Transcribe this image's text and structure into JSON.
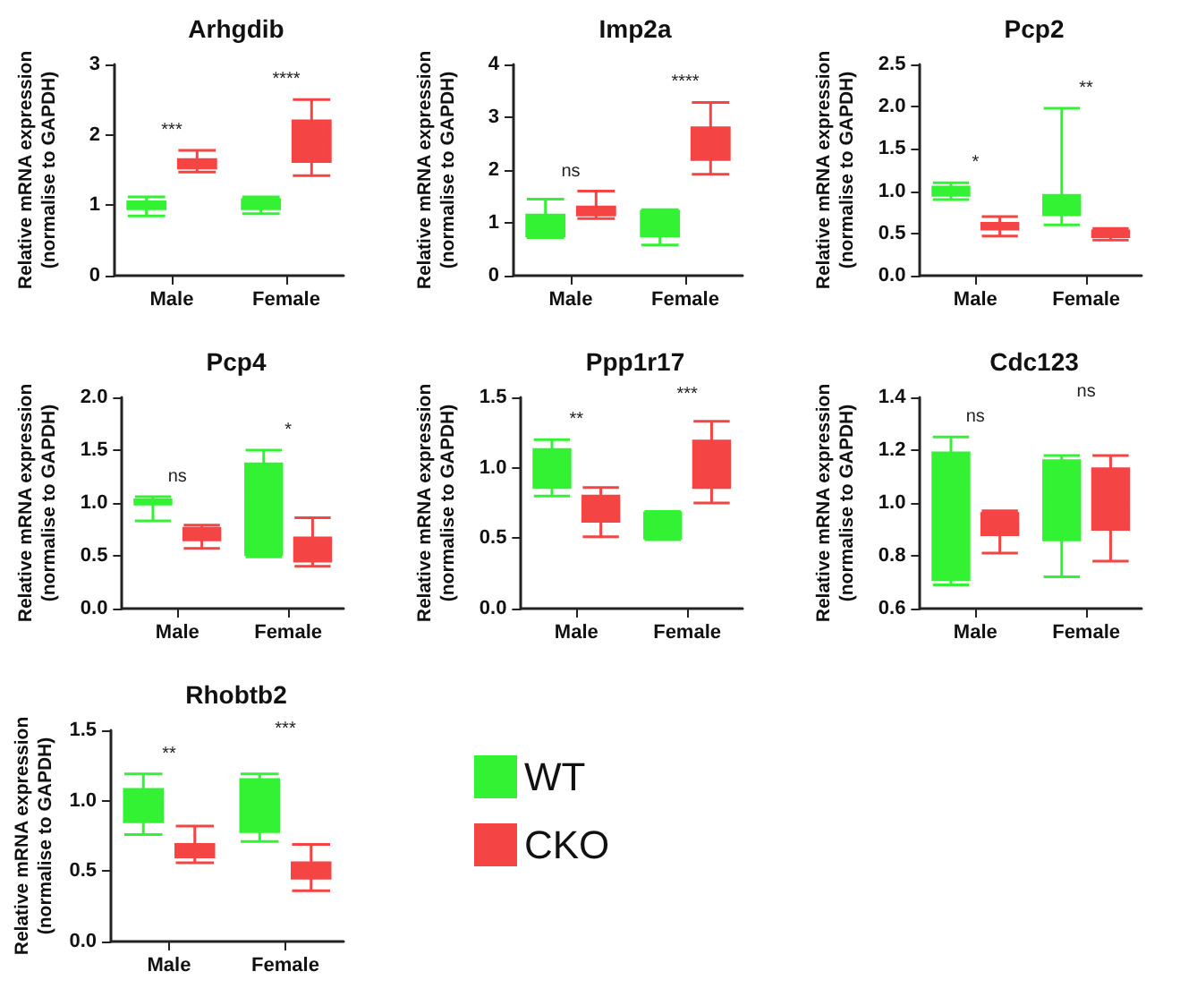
{
  "chart_data": [
    {
      "type": "box",
      "title": "Arhgdib",
      "ylabel": "Relative mRNA expression\n(normalise to GAPDH)",
      "categories": [
        "Male",
        "Female"
      ],
      "ylim": [
        0,
        3
      ],
      "yticks": [
        0,
        1,
        2,
        3
      ],
      "grid": false,
      "legend": false,
      "annotations": [
        "***",
        "****"
      ],
      "series": [
        {
          "color": "#33f233",
          "boxes": [
            {
              "low": 0.85,
              "q1": 0.95,
              "median": 1.0,
              "q3": 1.05,
              "high": 1.12
            },
            {
              "low": 0.88,
              "q1": 0.95,
              "median": 1.02,
              "q3": 1.08,
              "high": 1.12
            }
          ]
        },
        {
          "color": "#f44444",
          "boxes": [
            {
              "low": 1.47,
              "q1": 1.53,
              "median": 1.58,
              "q3": 1.65,
              "high": 1.78
            },
            {
              "low": 1.42,
              "q1": 1.62,
              "median": 1.91,
              "q3": 2.2,
              "high": 2.5
            }
          ]
        }
      ]
    },
    {
      "type": "box",
      "title": "Imp2a",
      "ylabel": "Relative mRNA expression\n(normalise to GAPDH)",
      "categories": [
        "Male",
        "Female"
      ],
      "ylim": [
        0,
        4
      ],
      "yticks": [
        0,
        1,
        2,
        3,
        4
      ],
      "grid": false,
      "legend": false,
      "annotations": [
        "ns",
        "****"
      ],
      "series": [
        {
          "color": "#33f233",
          "boxes": [
            {
              "low": 0.72,
              "q1": 0.75,
              "median": 0.95,
              "q3": 1.15,
              "high": 1.45
            },
            {
              "low": 0.58,
              "q1": 0.75,
              "median": 1.08,
              "q3": 1.22,
              "high": 1.25
            }
          ]
        },
        {
          "color": "#f44444",
          "boxes": [
            {
              "low": 1.08,
              "q1": 1.15,
              "median": 1.22,
              "q3": 1.3,
              "high": 1.6
            },
            {
              "low": 1.92,
              "q1": 2.2,
              "median": 2.6,
              "q3": 2.8,
              "high": 3.28
            }
          ]
        }
      ]
    },
    {
      "type": "box",
      "title": "Pcp2",
      "ylabel": "Relative mRNA expression\n(normalise to GAPDH)",
      "categories": [
        "Male",
        "Female"
      ],
      "ylim": [
        0,
        2.5
      ],
      "yticks": [
        {
          "value": 0,
          "label": "0.0"
        },
        {
          "value": 0.5,
          "label": "0.5"
        },
        {
          "value": 1,
          "label": "1.0"
        },
        {
          "value": 1.5,
          "label": "1.5"
        },
        {
          "value": 2,
          "label": "2.0"
        },
        {
          "value": 2.5,
          "label": "2.5"
        }
      ],
      "grid": false,
      "legend": false,
      "annotations": [
        "*",
        "**"
      ],
      "series": [
        {
          "color": "#33f233",
          "boxes": [
            {
              "low": 0.9,
              "q1": 0.95,
              "median": 1.0,
              "q3": 1.05,
              "high": 1.1
            },
            {
              "low": 0.6,
              "q1": 0.72,
              "median": 0.84,
              "q3": 0.95,
              "high": 1.98
            }
          ]
        },
        {
          "color": "#f44444",
          "boxes": [
            {
              "low": 0.47,
              "q1": 0.55,
              "median": 0.58,
              "q3": 0.62,
              "high": 0.7
            },
            {
              "low": 0.42,
              "q1": 0.46,
              "median": 0.5,
              "q3": 0.53,
              "high": 0.56
            }
          ]
        }
      ]
    },
    {
      "type": "box",
      "title": "Pcp4",
      "ylabel": "Relative mRNA expression\n(normalise to GAPDH)",
      "categories": [
        "Male",
        "Female"
      ],
      "ylim": [
        0,
        2
      ],
      "yticks": [
        {
          "value": 0,
          "label": "0.0"
        },
        {
          "value": 0.5,
          "label": "0.5"
        },
        {
          "value": 1,
          "label": "1.0"
        },
        {
          "value": 1.5,
          "label": "1.5"
        },
        {
          "value": 2,
          "label": "2.0"
        }
      ],
      "grid": false,
      "legend": false,
      "annotations": [
        "ns",
        "*"
      ],
      "series": [
        {
          "color": "#33f233",
          "boxes": [
            {
              "low": 0.83,
              "q1": 0.99,
              "median": 1.02,
              "q3": 1.03,
              "high": 1.06
            },
            {
              "low": 0.49,
              "q1": 0.51,
              "median": 1.07,
              "q3": 1.37,
              "high": 1.5
            }
          ]
        },
        {
          "color": "#f44444",
          "boxes": [
            {
              "low": 0.57,
              "q1": 0.65,
              "median": 0.74,
              "q3": 0.76,
              "high": 0.79
            },
            {
              "low": 0.4,
              "q1": 0.45,
              "median": 0.56,
              "q3": 0.67,
              "high": 0.86
            }
          ]
        }
      ]
    },
    {
      "type": "box",
      "title": "Ppp1r17",
      "ylabel": "Relative mRNA expression\n(normalise to GAPDH)",
      "categories": [
        "Male",
        "Female"
      ],
      "ylim": [
        0,
        1.5
      ],
      "yticks": [
        {
          "value": 0,
          "label": "0.0"
        },
        {
          "value": 0.5,
          "label": "0.5"
        },
        {
          "value": 1,
          "label": "1.0"
        },
        {
          "value": 1.5,
          "label": "1.5"
        }
      ],
      "grid": false,
      "legend": false,
      "annotations": [
        "**",
        "***"
      ],
      "series": [
        {
          "color": "#33f233",
          "boxes": [
            {
              "low": 0.8,
              "q1": 0.86,
              "median": 1.01,
              "q3": 1.13,
              "high": 1.2
            },
            {
              "low": 0.49,
              "q1": 0.5,
              "median": 0.6,
              "q3": 0.68,
              "high": 0.69
            }
          ]
        },
        {
          "color": "#f44444",
          "boxes": [
            {
              "low": 0.51,
              "q1": 0.62,
              "median": 0.73,
              "q3": 0.8,
              "high": 0.86
            },
            {
              "low": 0.75,
              "q1": 0.86,
              "median": 0.94,
              "q3": 1.19,
              "high": 1.33
            }
          ]
        }
      ]
    },
    {
      "type": "box",
      "title": "Cdc123",
      "ylabel": "Relative mRNA expression\n(normalise to GAPDH)",
      "categories": [
        "Male",
        "Female"
      ],
      "ylim": [
        0.6,
        1.4
      ],
      "yticks": [
        0.6,
        0.8,
        {
          "value": 1,
          "label": "1.0"
        },
        1.2,
        1.4
      ],
      "grid": false,
      "legend": false,
      "annotations": [
        "ns",
        "ns"
      ],
      "series": [
        {
          "color": "#33f233",
          "boxes": [
            {
              "low": 0.69,
              "q1": 0.71,
              "median": 1.09,
              "q3": 1.19,
              "high": 1.25
            },
            {
              "low": 0.72,
              "q1": 0.86,
              "median": 1.02,
              "q3": 1.16,
              "high": 1.18
            }
          ]
        },
        {
          "color": "#f44444",
          "boxes": [
            {
              "low": 0.81,
              "q1": 0.88,
              "median": 0.92,
              "q3": 0.96,
              "high": 0.97
            },
            {
              "low": 0.78,
              "q1": 0.9,
              "median": 0.99,
              "q3": 1.13,
              "high": 1.18
            }
          ]
        }
      ]
    },
    {
      "type": "box",
      "title": "Rhobtb2",
      "ylabel": "Relative mRNA expression\n(normalise to GAPDH)",
      "categories": [
        "Male",
        "Female"
      ],
      "ylim": [
        0,
        1.5
      ],
      "yticks": [
        {
          "value": 0,
          "label": "0.0"
        },
        {
          "value": 0.5,
          "label": "0.5"
        },
        {
          "value": 1,
          "label": "1.0"
        },
        {
          "value": 1.5,
          "label": "1.5"
        }
      ],
      "grid": false,
      "legend": "right",
      "annotations": [
        "**",
        "***"
      ],
      "series": [
        {
          "name": "WT",
          "color": "#33f233",
          "boxes": [
            {
              "low": 0.76,
              "q1": 0.85,
              "median": 0.99,
              "q3": 1.08,
              "high": 1.19
            },
            {
              "low": 0.71,
              "q1": 0.78,
              "median": 1.1,
              "q3": 1.15,
              "high": 1.19
            }
          ]
        },
        {
          "name": "CKO",
          "color": "#f44444",
          "boxes": [
            {
              "low": 0.56,
              "q1": 0.6,
              "median": 0.64,
              "q3": 0.69,
              "high": 0.82
            },
            {
              "low": 0.36,
              "q1": 0.45,
              "median": 0.49,
              "q3": 0.56,
              "high": 0.69
            }
          ]
        }
      ]
    }
  ]
}
